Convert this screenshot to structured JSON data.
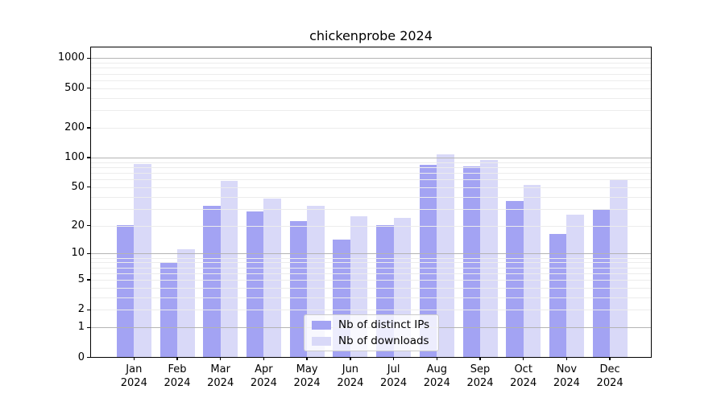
{
  "chart_data": {
    "type": "bar",
    "title": "chickenprobe 2024",
    "categories": [
      "Jan",
      "Feb",
      "Mar",
      "Apr",
      "May",
      "Jun",
      "Jul",
      "Aug",
      "Sep",
      "Oct",
      "Nov",
      "Dec"
    ],
    "year_label": "2024",
    "series": [
      {
        "name": "Nb of distinct IPs",
        "color": "#a3a3f3",
        "values": [
          20,
          8,
          32,
          28,
          22,
          14,
          20,
          84,
          81,
          36,
          16,
          29
        ]
      },
      {
        "name": "Nb of downloads",
        "color": "#d9d9f8",
        "values": [
          86,
          11,
          57,
          38,
          32,
          25,
          24,
          107,
          94,
          52,
          26,
          58
        ]
      }
    ],
    "xlabel": "",
    "ylabel": "",
    "y_scale": "log10(value+1)",
    "ylim": [
      0,
      1218
    ],
    "y_ticks": [
      0,
      1,
      2,
      5,
      10,
      20,
      50,
      100,
      200,
      500,
      1000
    ],
    "y_tick_labels": [
      "0",
      "1",
      "2",
      "5",
      "10",
      "20",
      "50",
      "100",
      "200",
      "500",
      "1000"
    ],
    "y_minor_gridlines": [
      2,
      3,
      4,
      5,
      6,
      7,
      8,
      9,
      20,
      30,
      40,
      50,
      60,
      70,
      80,
      90,
      200,
      300,
      400,
      500,
      600,
      700,
      800,
      900
    ],
    "y_major_gridlines": [
      1,
      10,
      100,
      1000
    ],
    "grid": "on, drawn above bars",
    "legend_position": "lower center",
    "colors": {
      "background": "#ffffff",
      "spine": "#000000",
      "major_grid": "#b4b4b4",
      "minor_grid": "#ececec",
      "legend_border": "#cccccc",
      "text": "#000000"
    }
  }
}
